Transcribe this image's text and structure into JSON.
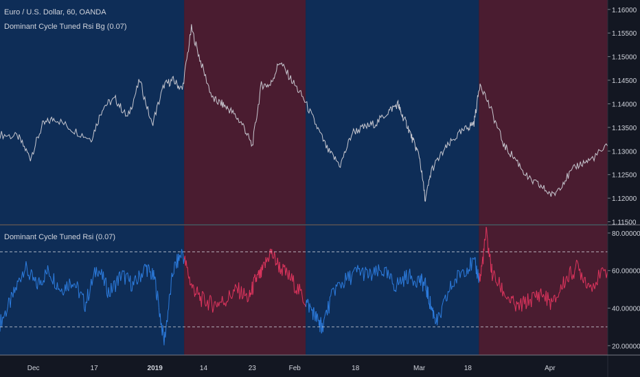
{
  "header": {
    "symbol": "Euro / U.S. Dollar, 60, OANDA",
    "indicator_top": "Dominant Cycle Tuned Rsi Bg (0.07)",
    "indicator_bottom": "Dominant Cycle Tuned Rsi (0.07)"
  },
  "colors": {
    "background": "#131722",
    "bull_bg": "#0e2d57",
    "bear_bg": "#4a1c30",
    "price_line": "#c8c8d0",
    "rsi_bull": "#2d7de0",
    "rsi_bear": "#e0355e",
    "level_line": "#d1d4dc"
  },
  "chart_data": [
    {
      "type": "line",
      "title": "Euro / U.S. Dollar, 60, OANDA",
      "series": [
        {
          "name": "Dominant Cycle Tuned Rsi Bg (0.07)",
          "x_pct": [
            0,
            3,
            5,
            7,
            9,
            12,
            15,
            17,
            19,
            21,
            23,
            25,
            27,
            28.5,
            30,
            31.5,
            33,
            35,
            36.5,
            38,
            40,
            41.5,
            43,
            44.5,
            46,
            48,
            50,
            52,
            54,
            56,
            58,
            60,
            62,
            64,
            65.5,
            66,
            67,
            68,
            69,
            70,
            71,
            73,
            75,
            77,
            78,
            79,
            81,
            83,
            85,
            87,
            89,
            91,
            93,
            95,
            97,
            100
          ],
          "values": [
            1.1335,
            1.133,
            1.1285,
            1.1355,
            1.137,
            1.1345,
            1.1325,
            1.1395,
            1.141,
            1.137,
            1.145,
            1.1355,
            1.144,
            1.145,
            1.143,
            1.156,
            1.149,
            1.141,
            1.14,
            1.1385,
            1.1355,
            1.131,
            1.144,
            1.144,
            1.149,
            1.145,
            1.141,
            1.1355,
            1.13,
            1.127,
            1.134,
            1.135,
            1.136,
            1.1385,
            1.14,
            1.138,
            1.1355,
            1.132,
            1.129,
            1.1195,
            1.126,
            1.13,
            1.133,
            1.135,
            1.136,
            1.1445,
            1.138,
            1.131,
            1.128,
            1.124,
            1.1225,
            1.1205,
            1.124,
            1.127,
            1.128,
            1.131
          ]
        }
      ],
      "ylim": [
        1.1145,
        1.162
      ],
      "y_ticks": [
        "1.16000",
        "1.15500",
        "1.15000",
        "1.14500",
        "1.14000",
        "1.13500",
        "1.13000",
        "1.12500",
        "1.12000",
        "1.11500"
      ]
    },
    {
      "type": "line",
      "title": "Dominant Cycle Tuned Rsi (0.07)",
      "series": [
        {
          "name": "Dominant Cycle Tuned Rsi (0.07)",
          "x_pct": [
            0,
            2,
            4,
            6,
            8,
            10,
            12,
            14,
            16,
            18,
            20,
            22,
            24,
            25.5,
            27,
            28.5,
            30,
            31.5,
            33,
            35,
            37,
            39,
            41,
            42,
            43,
            44.5,
            46,
            48,
            50,
            51.5,
            52.5,
            53,
            55,
            57,
            59,
            61,
            63,
            65,
            67,
            69,
            70,
            71,
            72,
            74,
            76,
            78,
            79,
            80,
            81,
            83,
            85,
            87,
            89,
            91,
            93,
            95,
            97,
            100
          ],
          "values": [
            32,
            45,
            62,
            52,
            60,
            50,
            55,
            42,
            62,
            48,
            58,
            52,
            62,
            55,
            22,
            60,
            70,
            52,
            45,
            42,
            44,
            50,
            45,
            55,
            58,
            70,
            62,
            55,
            45,
            38,
            32,
            30,
            50,
            55,
            60,
            57,
            60,
            52,
            57,
            55,
            52,
            40,
            32,
            50,
            60,
            64,
            55,
            80,
            58,
            48,
            40,
            44,
            48,
            42,
            55,
            62,
            52,
            60
          ],
          "levels": [
            70,
            30
          ]
        }
      ],
      "ylim": [
        15,
        84
      ],
      "y_ticks": [
        "80.00000",
        "60.00000",
        "40.00000",
        "20.00000"
      ]
    }
  ],
  "regimes": [
    {
      "from_pct": 0,
      "to_pct": 30.3,
      "state": "bull"
    },
    {
      "from_pct": 30.3,
      "to_pct": 50.3,
      "state": "bear"
    },
    {
      "from_pct": 50.3,
      "to_pct": 78.8,
      "state": "bull"
    },
    {
      "from_pct": 78.8,
      "to_pct": 100,
      "state": "bear"
    }
  ],
  "x_axis": {
    "labels": [
      {
        "text": "Dec",
        "pct": 5.5,
        "bold": false
      },
      {
        "text": "17",
        "pct": 15.5,
        "bold": false
      },
      {
        "text": "2019",
        "pct": 25.5,
        "bold": true
      },
      {
        "text": "14",
        "pct": 33.5,
        "bold": false
      },
      {
        "text": "23",
        "pct": 41.5,
        "bold": false
      },
      {
        "text": "Feb",
        "pct": 48.5,
        "bold": false
      },
      {
        "text": "18",
        "pct": 58.5,
        "bold": false
      },
      {
        "text": "Mar",
        "pct": 69,
        "bold": false
      },
      {
        "text": "18",
        "pct": 77,
        "bold": false
      },
      {
        "text": "Apr",
        "pct": 90.5,
        "bold": false
      }
    ]
  }
}
